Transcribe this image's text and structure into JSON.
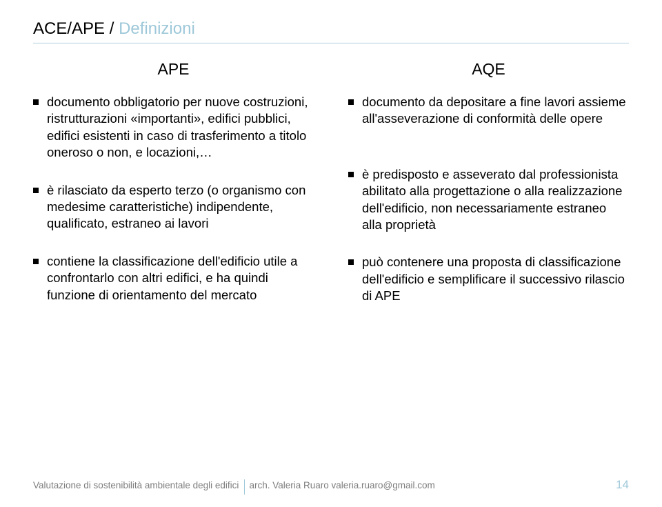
{
  "header": {
    "title_strong": "ACE/APE",
    "title_sep": " / ",
    "title_light": "Definizioni"
  },
  "left": {
    "heading": "APE",
    "items": [
      "documento obbligatorio per nuove costruzioni, ristrutturazioni «importanti», edifici pubblici, edifici esistenti in caso di trasferimento a titolo oneroso o non, e locazioni,…",
      "è rilasciato da <b>esperto terzo</b> (o organismo con medesime caratteristiche) indipendente, qualificato, estraneo ai lavori",
      "contiene la <b>classificazione</b> dell'edificio utile a confrontarlo con altri edifici, e ha quindi funzione di orientamento del mercato"
    ]
  },
  "right": {
    "heading": "AQE",
    "items": [
      "documento da depositare <b>a fine lavori</b> assieme all'asseverazione di conformità delle opere",
      "è predisposto e asseverato dal <b>professionista abilitato</b> alla progettazione o alla realizzazione dell'edificio, non necessariamente estraneo alla proprietà",
      "può contenere una <b>proposta di classificazione</b> dell'edificio e semplificare il successivo rilascio di APE"
    ]
  },
  "footer": {
    "left_text": "Valutazione di sostenibilità ambientale degli edifici",
    "right_text": "arch. Valeria Ruaro valeria.ruaro@gmail.com",
    "page": "14"
  }
}
